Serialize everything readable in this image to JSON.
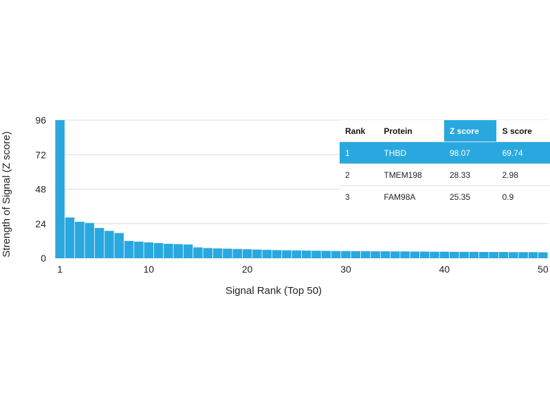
{
  "chart_data": {
    "type": "bar",
    "xlabel": "Signal Rank (Top 50)",
    "ylabel": "Strength of Signal (Z score)",
    "xlim": [
      0.5,
      50.5
    ],
    "ylim": [
      0,
      96
    ],
    "yticks": [
      0,
      24,
      48,
      72,
      96
    ],
    "xticks": [
      1,
      10,
      20,
      30,
      40,
      50
    ],
    "grid": true,
    "bar_color": "#29a8df",
    "categories": [
      1,
      2,
      3,
      4,
      5,
      6,
      7,
      8,
      9,
      10,
      11,
      12,
      13,
      14,
      15,
      16,
      17,
      18,
      19,
      20,
      21,
      22,
      23,
      24,
      25,
      26,
      27,
      28,
      29,
      30,
      31,
      32,
      33,
      34,
      35,
      36,
      37,
      38,
      39,
      40,
      41,
      42,
      43,
      44,
      45,
      46,
      47,
      48,
      49,
      50
    ],
    "values": [
      98.07,
      28.33,
      25.35,
      24.5,
      21,
      19,
      17.5,
      12,
      11.5,
      11,
      10.5,
      10,
      9.8,
      9.5,
      7.5,
      7,
      6.8,
      6.6,
      6.4,
      6.2,
      6,
      5.8,
      5.6,
      5.5,
      5.4,
      5.3,
      5.2,
      5.1,
      5,
      5,
      4.9,
      4.9,
      4.8,
      4.8,
      4.7,
      4.7,
      4.6,
      4.6,
      4.5,
      4.5,
      4.4,
      4.4,
      4.4,
      4.3,
      4.3,
      4.3,
      4.2,
      4.2,
      4.2,
      4.1
    ]
  },
  "table": {
    "headers": [
      "Rank",
      "Protein",
      "Z score",
      "S score"
    ],
    "highlight_color": "#29a8df",
    "rows": [
      [
        "1",
        "THBD",
        "98.07",
        "69.74"
      ],
      [
        "2",
        "TMEM198",
        "28.33",
        "2.98"
      ],
      [
        "3",
        "FAM98A",
        "25.35",
        "0.9"
      ]
    ]
  }
}
